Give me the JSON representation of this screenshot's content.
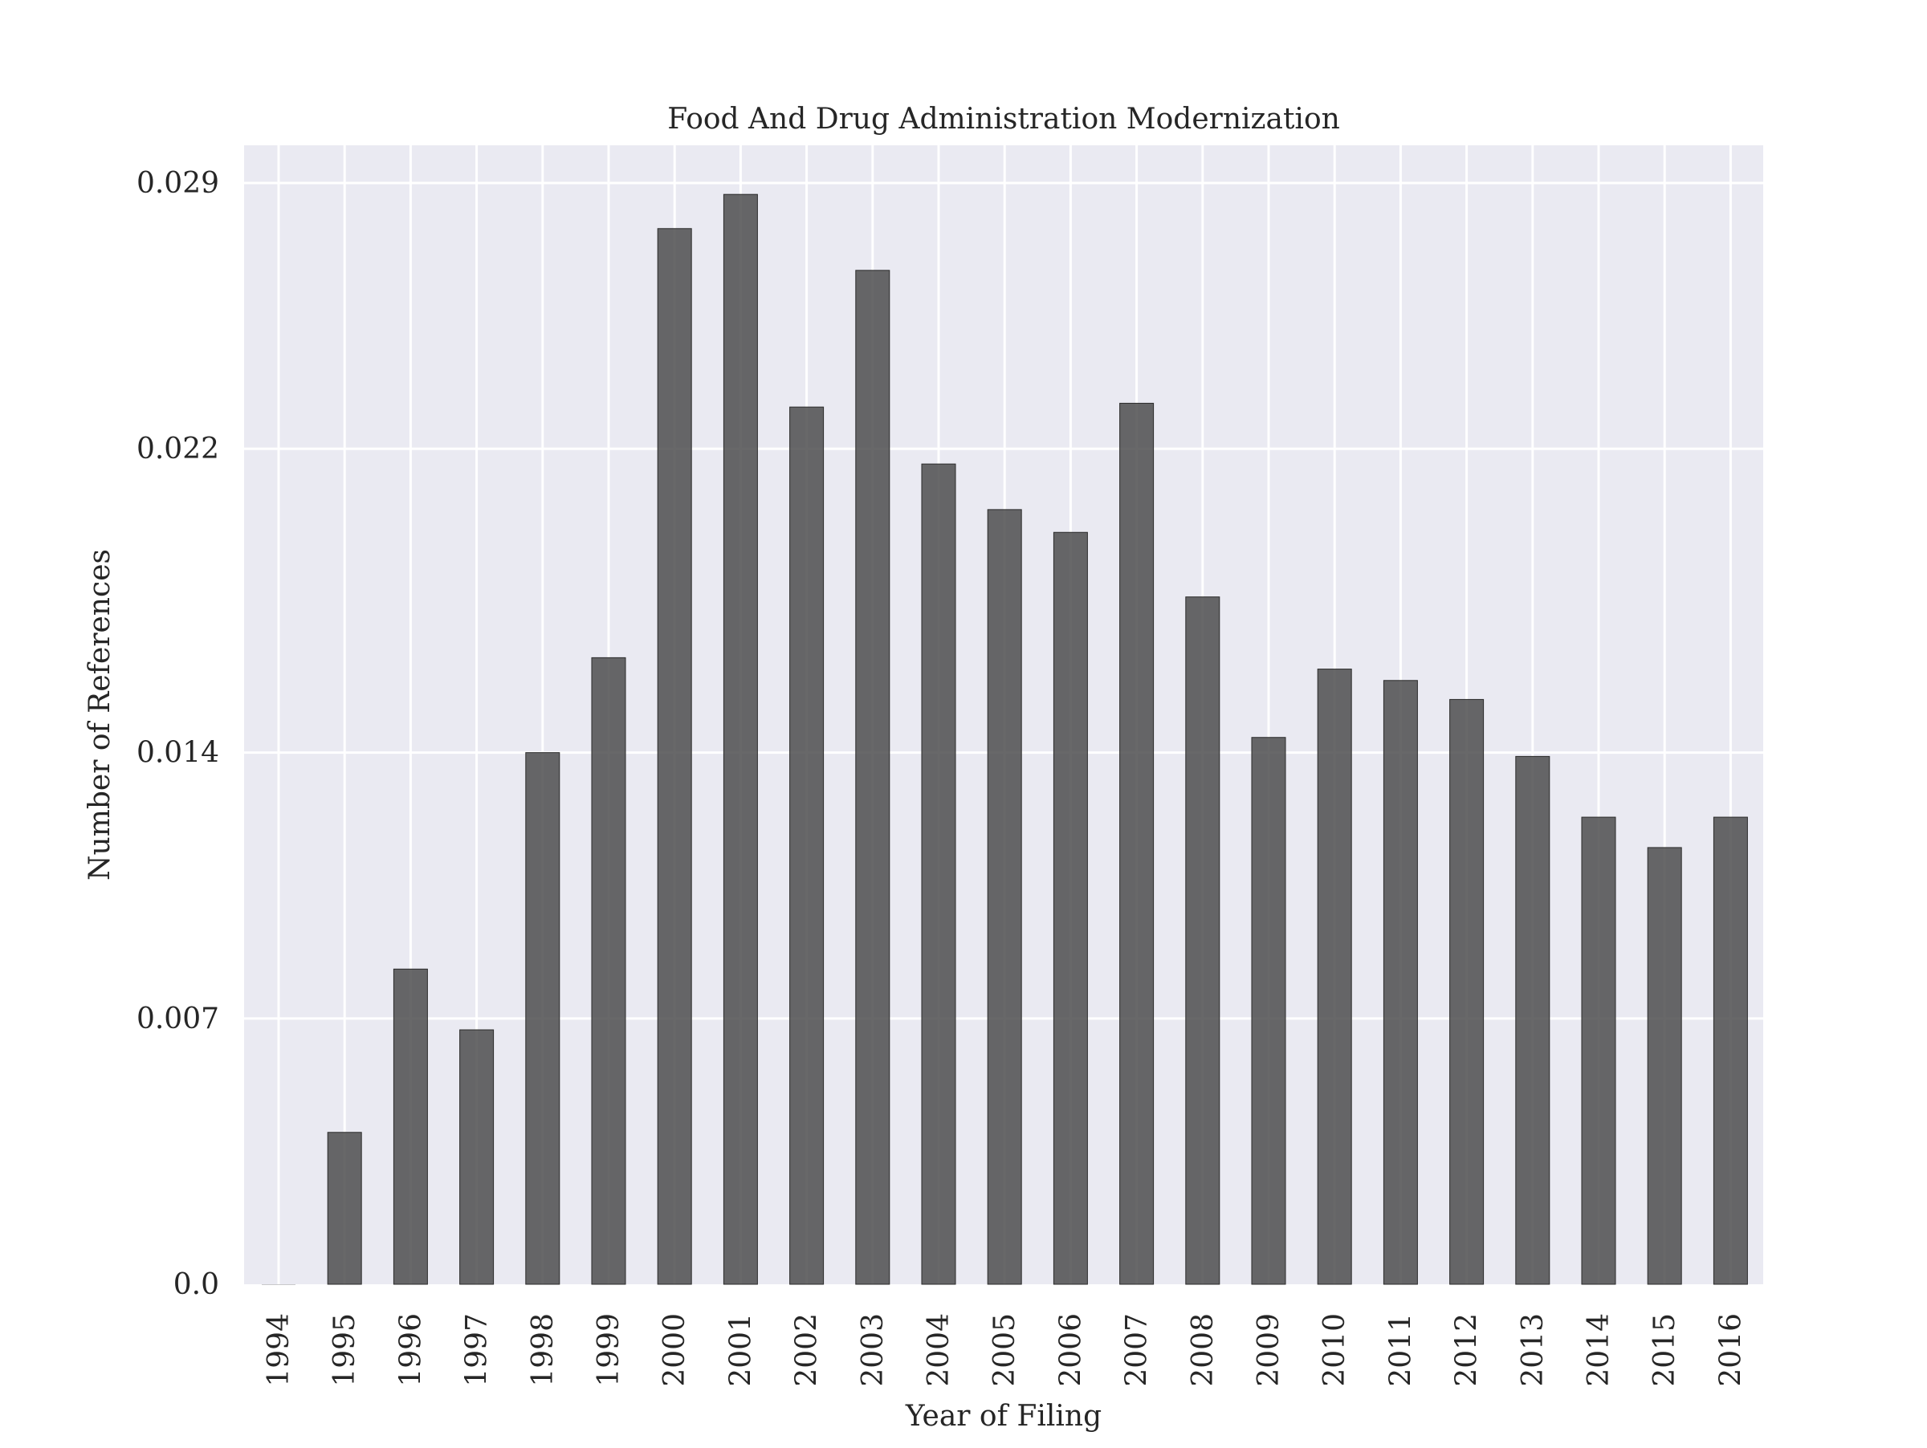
{
  "chart_data": {
    "type": "bar",
    "title": "Food And Drug Administration Modernization",
    "xlabel": "Year of Filing",
    "ylabel": "Number of References",
    "categories": [
      "1994",
      "1995",
      "1996",
      "1997",
      "1998",
      "1999",
      "2000",
      "2001",
      "2002",
      "2003",
      "2004",
      "2005",
      "2006",
      "2007",
      "2008",
      "2009",
      "2010",
      "2011",
      "2012",
      "2013",
      "2014",
      "2015",
      "2016"
    ],
    "values": [
      0.0,
      0.004,
      0.0083,
      0.0067,
      0.014,
      0.0165,
      0.0278,
      0.0287,
      0.0231,
      0.0267,
      0.0216,
      0.0204,
      0.0198,
      0.0232,
      0.0181,
      0.0144,
      0.0162,
      0.0159,
      0.0154,
      0.0139,
      0.0123,
      0.0115,
      0.0123
    ],
    "yticks": [
      "0.0",
      "0.007",
      "0.014",
      "0.022",
      "0.029"
    ],
    "ytick_values": [
      0.0,
      0.007,
      0.014,
      0.022,
      0.029
    ],
    "ylim": [
      0,
      0.03
    ],
    "grid": true,
    "legend": "none",
    "colors": {
      "bar": "#4d4d4f",
      "bar_edge": "#2b2b2b",
      "plot_background": "#eaeaf2",
      "grid": "#ffffff"
    }
  }
}
